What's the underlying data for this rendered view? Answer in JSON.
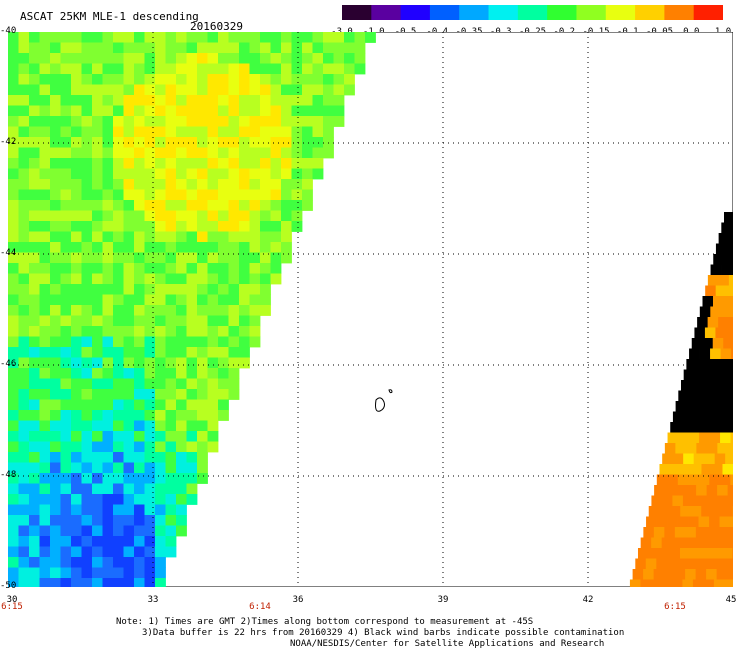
{
  "header": {
    "title": "ASCAT 25KM MLE-1 descending",
    "date": "20160329"
  },
  "colorbar": {
    "labels": [
      "-3.0",
      "-1.0",
      "-0.5",
      "-0.4",
      "-0.35",
      "-0.3",
      "-0.25",
      "-0.2",
      "-0.15",
      "-0.1",
      "-0.05",
      "0.0",
      "1.0"
    ],
    "colors": [
      "#2a0030",
      "#5a00a0",
      "#2000ff",
      "#0060ff",
      "#00a8ff",
      "#00f0f0",
      "#00ffa0",
      "#30ff30",
      "#90ff20",
      "#e8ff10",
      "#ffd000",
      "#ff8000",
      "#ff2000"
    ]
  },
  "axes": {
    "lat_labels": [
      "-40",
      "-42",
      "-44",
      "-46",
      "-48",
      "-50"
    ],
    "lon_labels": [
      "30",
      "33",
      "36",
      "39",
      "42",
      "45"
    ],
    "time_labels": [
      "6:15",
      "6:14",
      "6:15"
    ]
  },
  "notes": [
    "Note: 1) Times are GMT 2)Times along bottom correspond to measurement at -45S",
    "3)Data buffer is 22 hrs from 20160329 4) Black wind barbs indicate possible contamination",
    "NOAA/NESDIS/Center for Satellite Applications and Research"
  ]
}
